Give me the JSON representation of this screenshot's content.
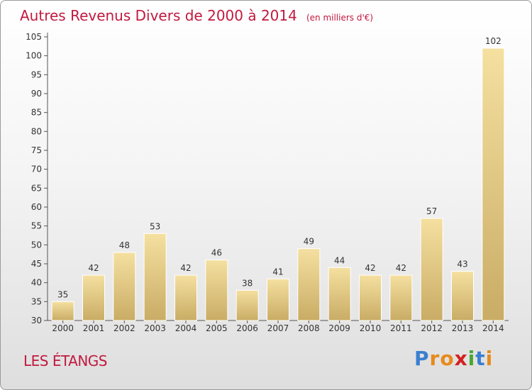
{
  "chart_data": {
    "type": "bar",
    "title": "Autres Revenus Divers de 2000 à 2014",
    "unit": "(en milliers d'€)",
    "categories": [
      "2000",
      "2001",
      "2002",
      "2003",
      "2004",
      "2005",
      "2006",
      "2007",
      "2008",
      "2009",
      "2010",
      "2011",
      "2012",
      "2013",
      "2014"
    ],
    "values": [
      35,
      42,
      48,
      53,
      42,
      46,
      38,
      41,
      49,
      44,
      42,
      42,
      57,
      43,
      102
    ],
    "ylim": [
      30,
      105
    ],
    "yticks": [
      30,
      35,
      40,
      45,
      50,
      55,
      60,
      65,
      70,
      75,
      80,
      85,
      90,
      95,
      100,
      105
    ],
    "grid": false,
    "bar_color": "#e8cf8a",
    "title_color": "#c1193f"
  },
  "footer": {
    "place": "LES ÉTANGS",
    "logo_text": "Proxiti",
    "logo_colors": [
      "#3a7fd0",
      "#e88a1a",
      "#e88a1a",
      "#d42020",
      "#48a830",
      "#3a7fd0",
      "#e88a1a"
    ]
  }
}
